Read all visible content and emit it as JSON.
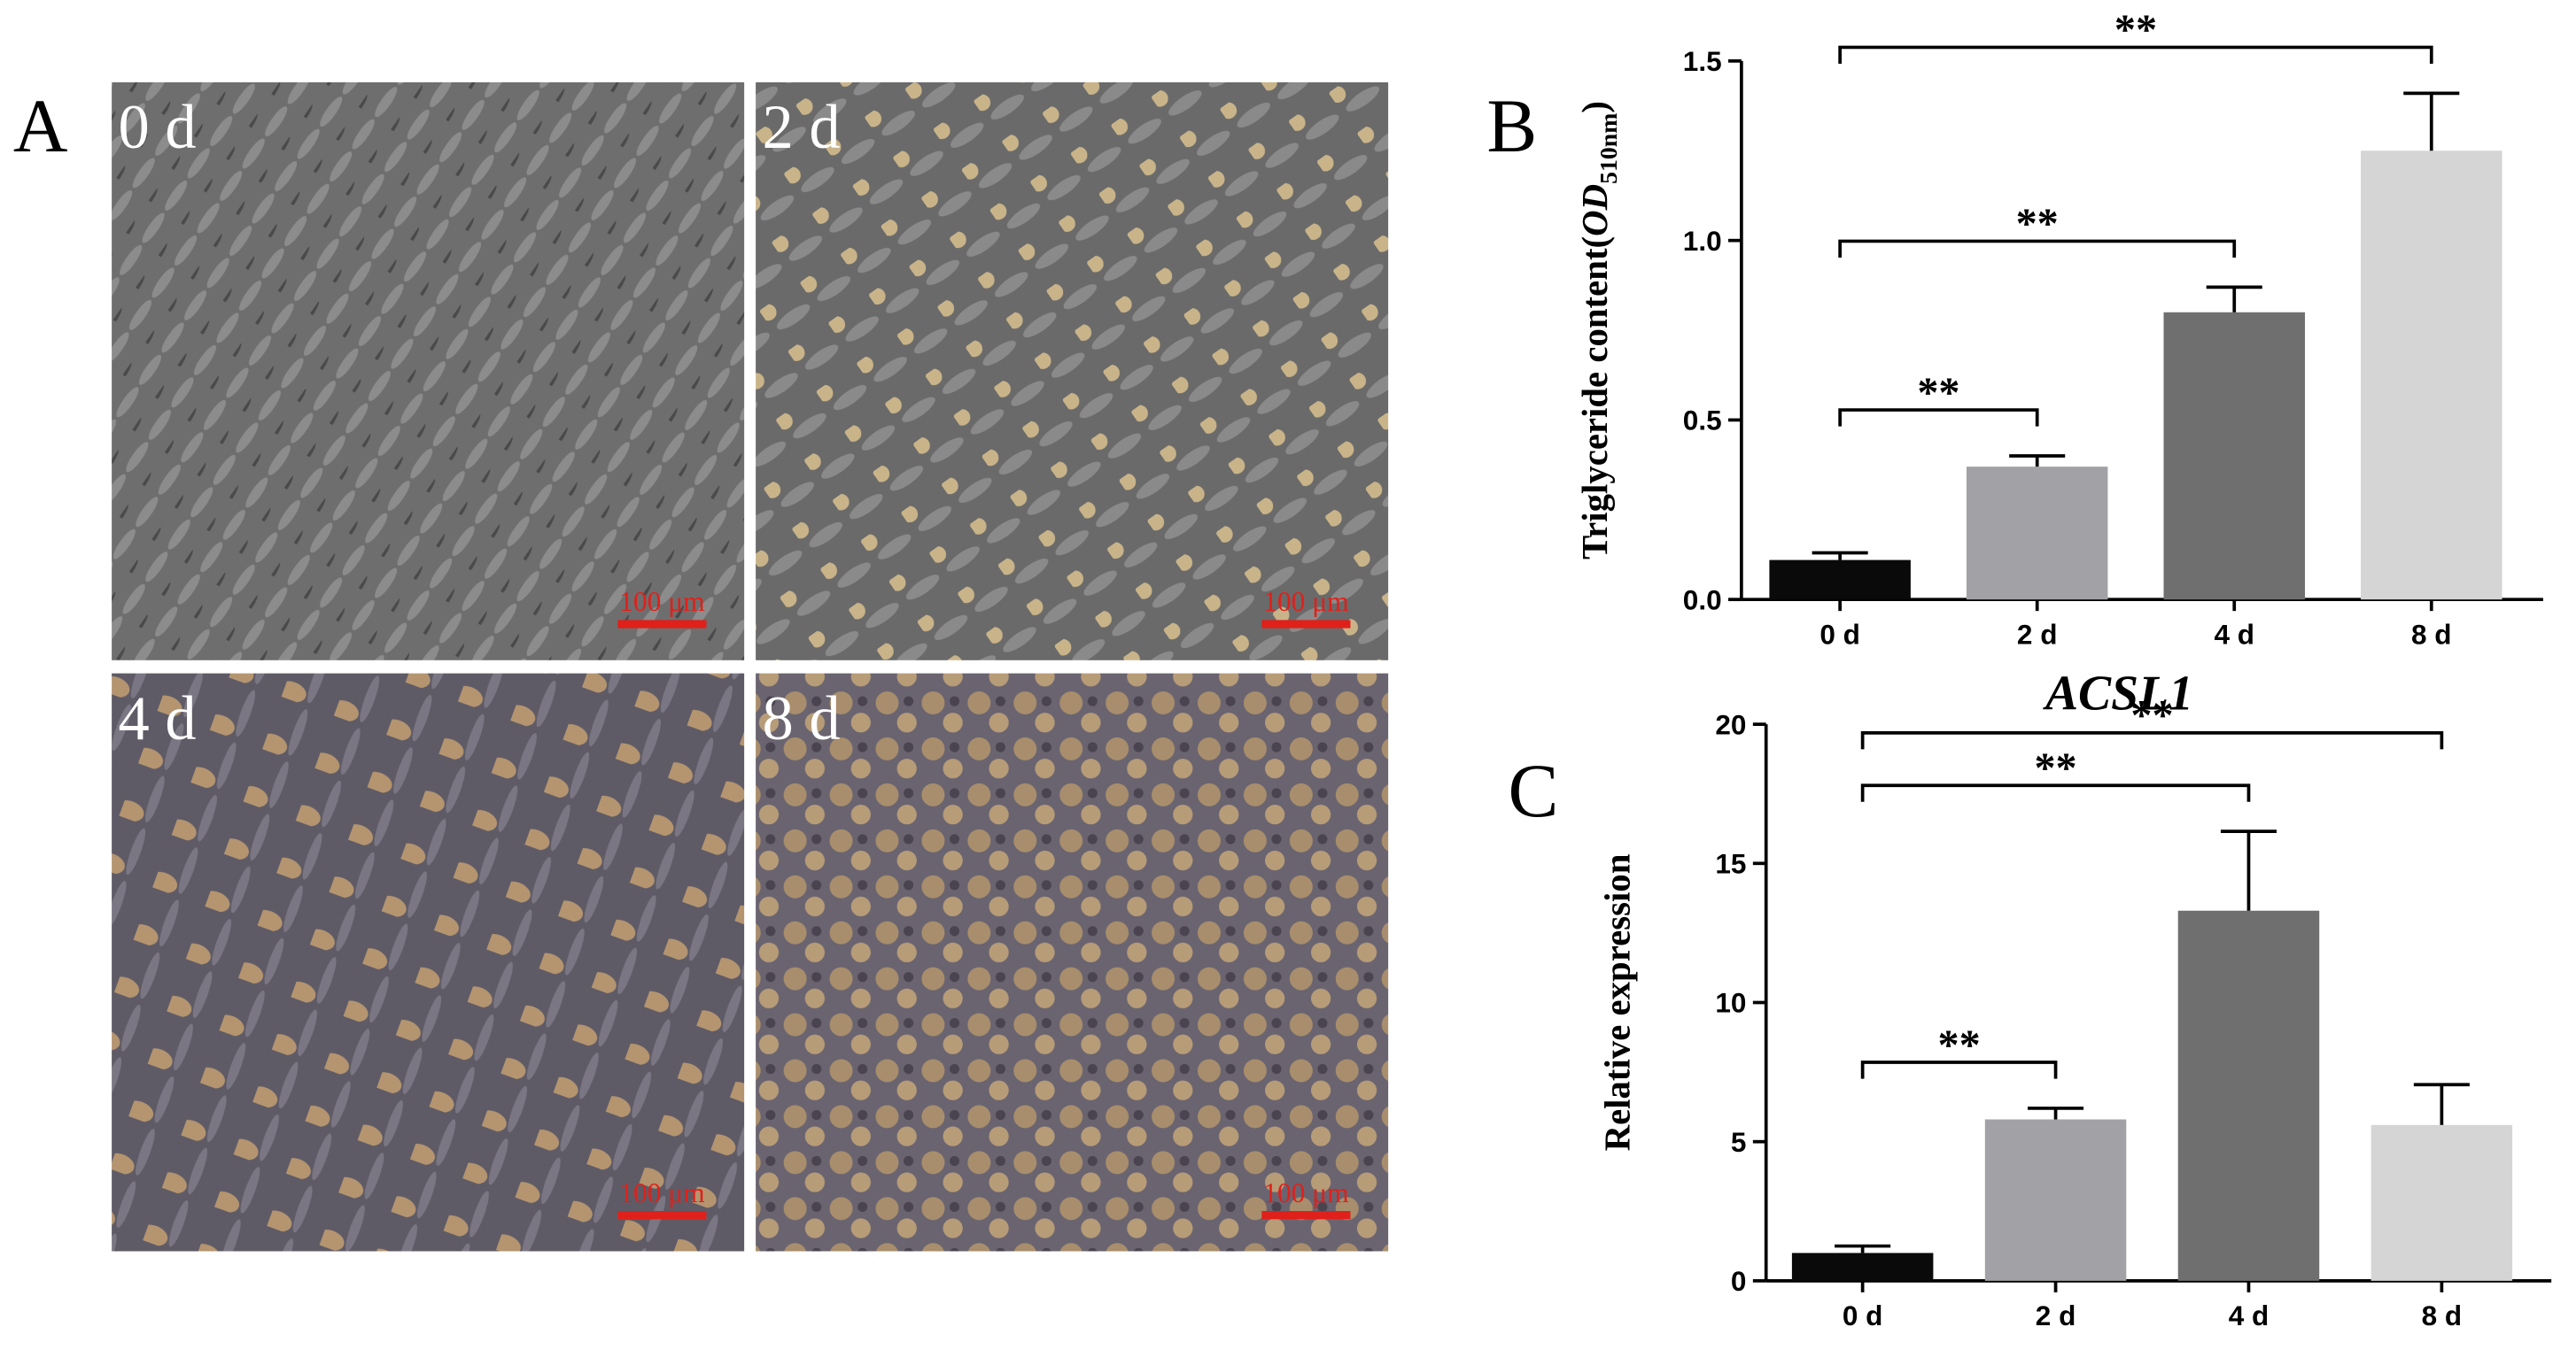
{
  "panel_a": {
    "label": "A",
    "images": [
      {
        "label": "0 d",
        "scale_bar": "100 μm"
      },
      {
        "label": "2 d",
        "scale_bar": "100 μm"
      },
      {
        "label": "4 d",
        "scale_bar": "100 μm"
      },
      {
        "label": "8 d",
        "scale_bar": "100 μm"
      }
    ]
  },
  "chart_data": [
    {
      "type": "bar",
      "panel_label": "B",
      "y_label_parts": [
        "Triglyceride content(",
        "OD",
        "510nm",
        ")"
      ],
      "categories": [
        "0 d",
        "2 d",
        "4 d",
        "8 d"
      ],
      "values": [
        0.11,
        0.37,
        0.8,
        1.25
      ],
      "errors": [
        0.02,
        0.03,
        0.07,
        0.16
      ],
      "colors": [
        "#0a0a0a",
        "#a2a2a6",
        "#6f6f6f",
        "#d5d5d5"
      ],
      "ylim": [
        0,
        1.5
      ],
      "yticks": [
        {
          "value": 0,
          "label": "0.0"
        },
        0.5,
        {
          "value": 1,
          "label": "1.0"
        },
        1.5
      ],
      "comparisons": [
        {
          "label": "**",
          "groups": [
            "0 d",
            "2 d"
          ]
        },
        {
          "label": "**",
          "groups": [
            "0 d",
            "4 d"
          ]
        },
        {
          "label": "**",
          "groups": [
            "0 d",
            "8 d"
          ]
        }
      ]
    },
    {
      "type": "bar",
      "panel_label": "C",
      "title": "ACSL1",
      "y_label": "Relative expression",
      "categories": [
        "0 d",
        "2 d",
        "4 d",
        "8 d"
      ],
      "values": [
        1.0,
        5.8,
        13.3,
        5.6
      ],
      "errors": [
        0.25,
        0.4,
        2.85,
        1.45
      ],
      "colors": [
        "#0a0a0a",
        "#a2a2a6",
        "#6f6f6f",
        "#d5d5d5"
      ],
      "ylim": [
        0,
        20
      ],
      "yticks": [
        0,
        5,
        10,
        15,
        20
      ],
      "comparisons": [
        {
          "label": "**",
          "groups": [
            "0 d",
            "2 d"
          ]
        },
        {
          "label": "**",
          "groups": [
            "0 d",
            "4 d"
          ]
        },
        {
          "label": "**",
          "groups": [
            "0 d",
            "8 d"
          ]
        }
      ]
    }
  ]
}
